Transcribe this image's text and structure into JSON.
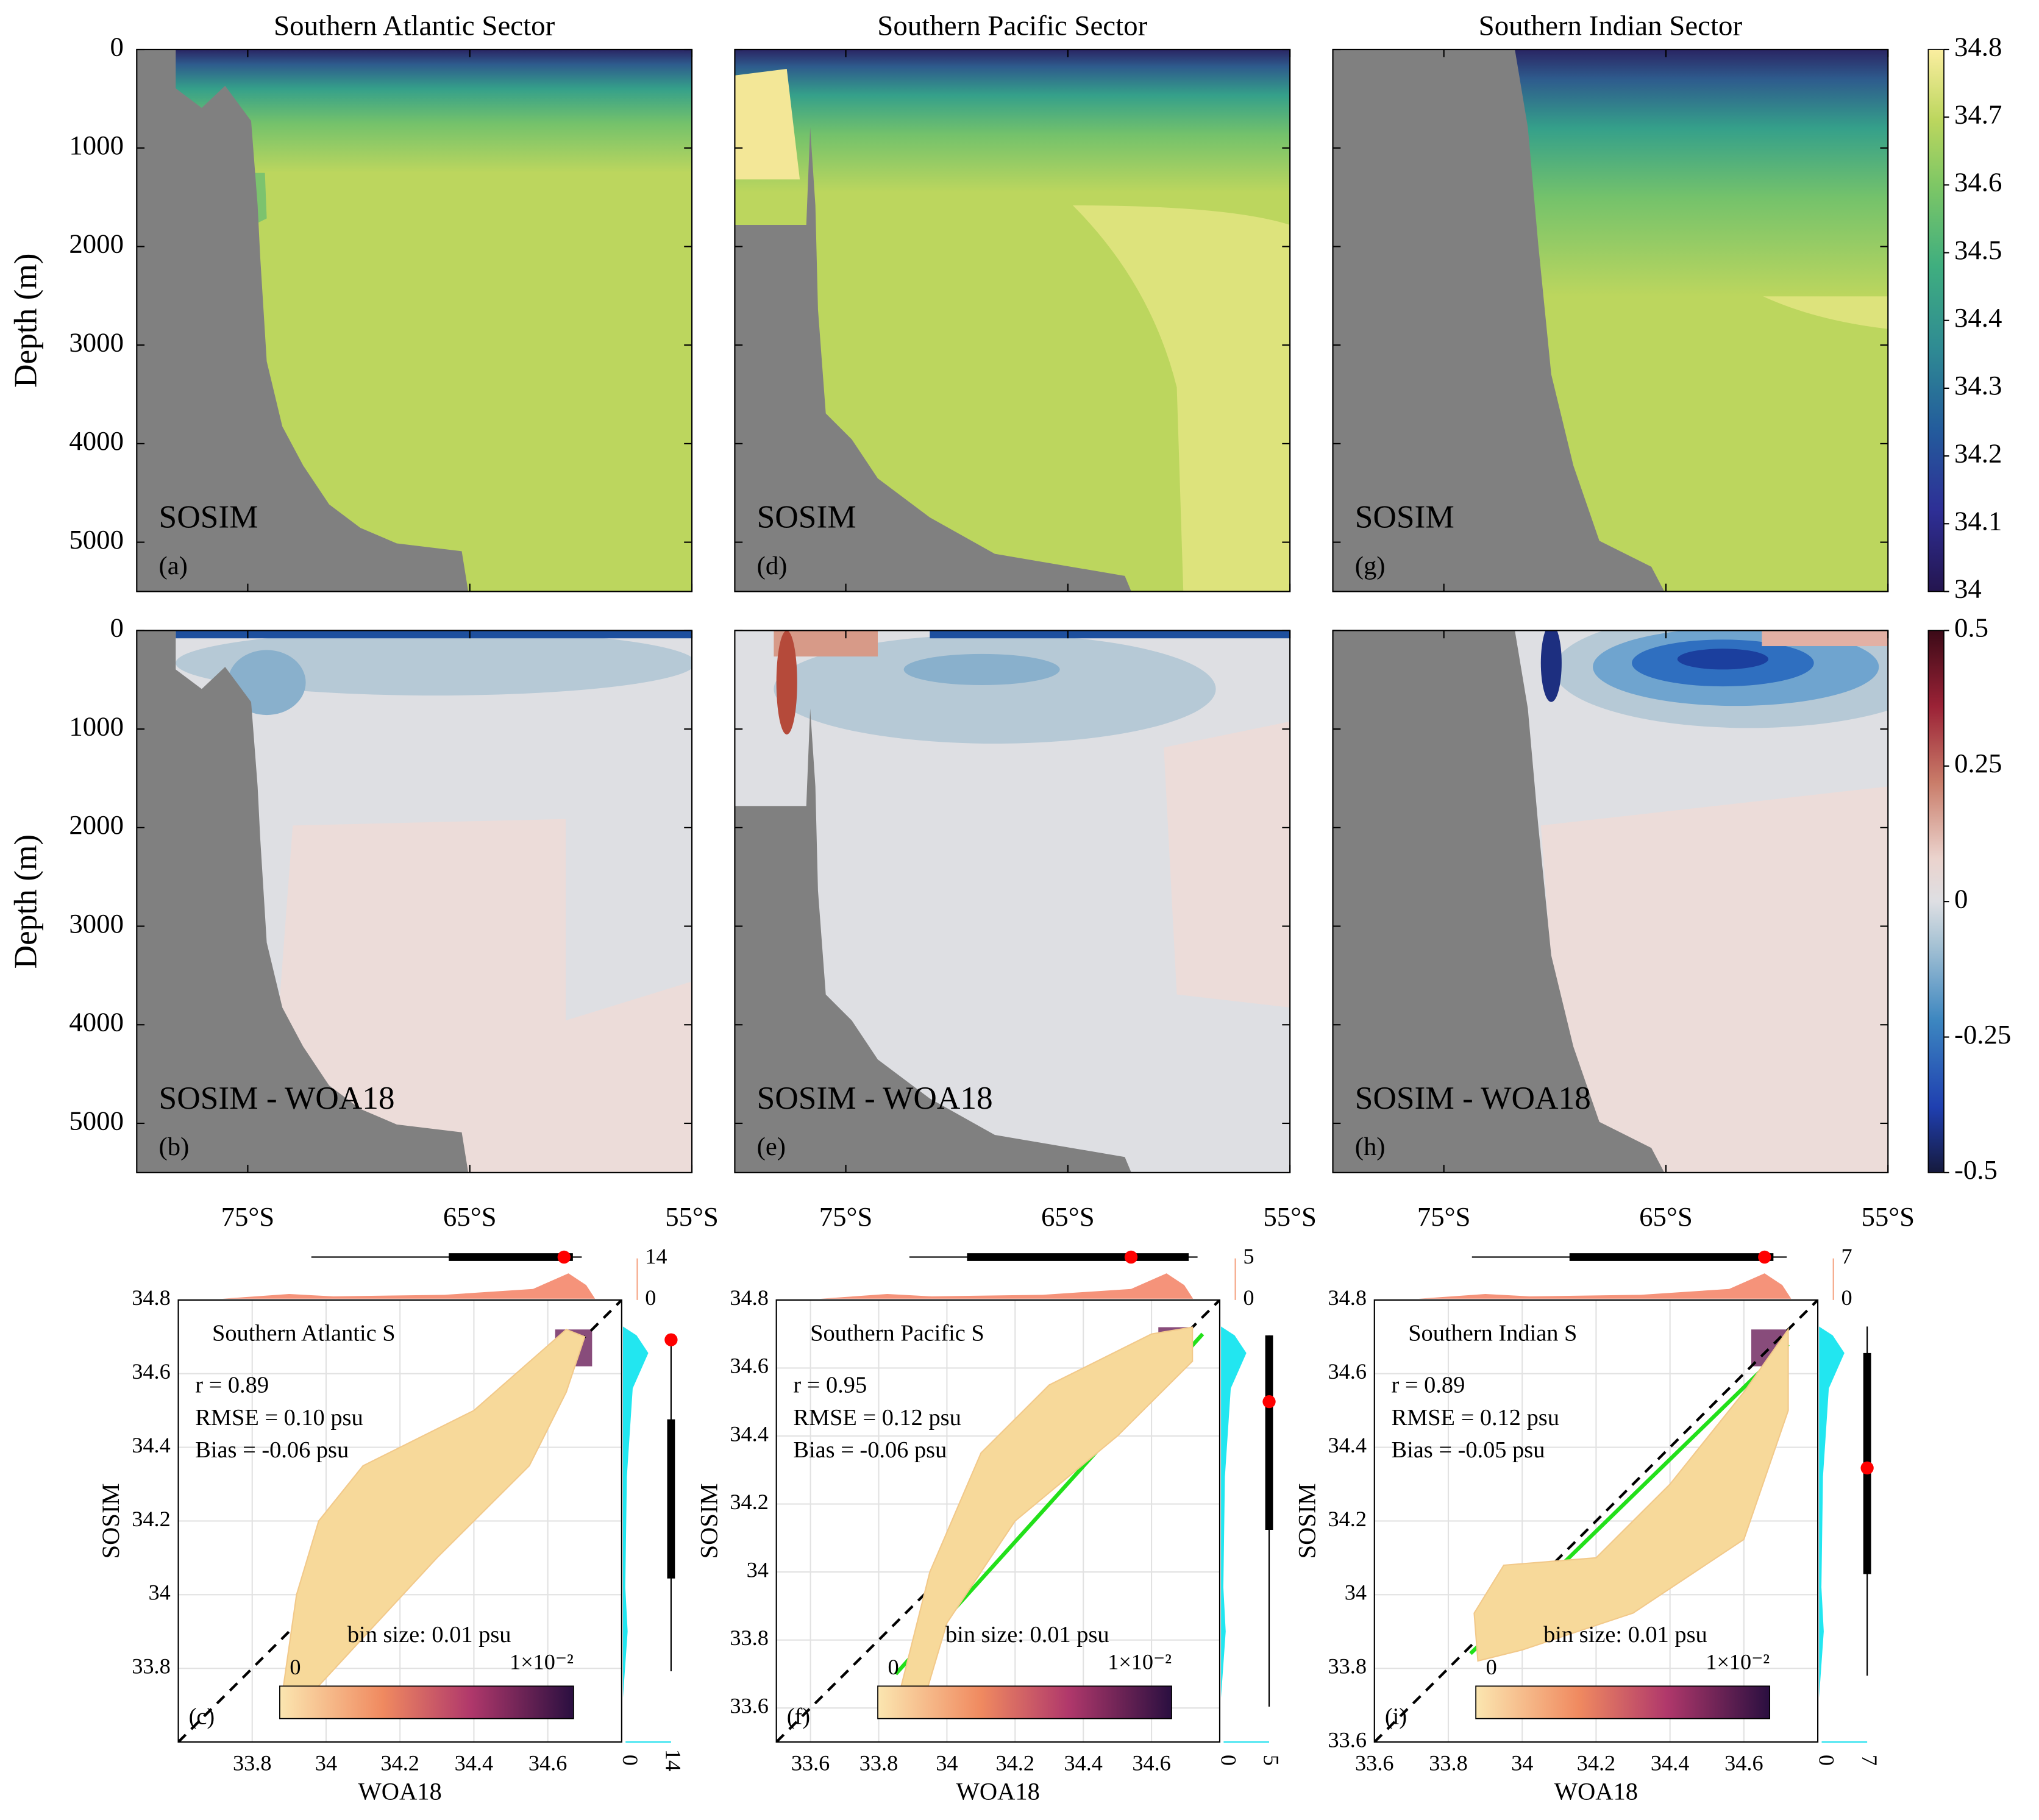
{
  "chart_data": [
    {
      "type": "contour",
      "title": "Southern Atlantic Sector",
      "label": "SOSIM",
      "panel": "(a)",
      "ylabel": "Depth (m)",
      "xlim": [
        -80,
        -55
      ],
      "xticks": [
        {
          "value": -75,
          "label": "75°S"
        },
        {
          "value": -65,
          "label": "65°S"
        },
        {
          "value": -55,
          "label": "55°S"
        }
      ],
      "ylim": [
        0,
        5500
      ],
      "yticks": [
        0,
        1000,
        2000,
        3000,
        4000,
        5000
      ],
      "xtick_labels": false,
      "ytick_labels": true
    },
    {
      "type": "contour",
      "title": "Southern Pacific Sector",
      "label": "SOSIM",
      "panel": "(d)",
      "xlim": [
        -80,
        -55
      ],
      "xticks": [
        {
          "value": -75,
          "label": "75°S"
        },
        {
          "value": -65,
          "label": "65°S"
        },
        {
          "value": -55,
          "label": "55°S"
        }
      ],
      "ylim": [
        0,
        5500
      ],
      "yticks": [
        0,
        1000,
        2000,
        3000,
        4000,
        5000
      ],
      "xtick_labels": false,
      "ytick_labels": false
    },
    {
      "type": "contour",
      "title": "Southern Indian Sector",
      "label": "SOSIM",
      "panel": "(g)",
      "xlim": [
        -80,
        -55
      ],
      "xticks": [
        {
          "value": -75,
          "label": "75°S"
        },
        {
          "value": -65,
          "label": "65°S"
        },
        {
          "value": -55,
          "label": "55°S"
        }
      ],
      "ylim": [
        0,
        5500
      ],
      "yticks": [
        0,
        1000,
        2000,
        3000,
        4000,
        5000
      ],
      "xtick_labels": false,
      "ytick_labels": false
    },
    {
      "type": "contour",
      "label": "SOSIM - WOA18",
      "panel": "(b)",
      "ylabel": "Depth (m)",
      "xlim": [
        -80,
        -55
      ],
      "xticks": [
        {
          "value": -75,
          "label": "75°S"
        },
        {
          "value": -65,
          "label": "65°S"
        },
        {
          "value": -55,
          "label": "55°S"
        }
      ],
      "ylim": [
        0,
        5500
      ],
      "yticks": [
        0,
        1000,
        2000,
        3000,
        4000,
        5000
      ],
      "xtick_labels": true,
      "ytick_labels": true
    },
    {
      "type": "contour",
      "label": "SOSIM - WOA18",
      "panel": "(e)",
      "xlim": [
        -80,
        -55
      ],
      "xticks": [
        {
          "value": -75,
          "label": "75°S"
        },
        {
          "value": -65,
          "label": "65°S"
        },
        {
          "value": -55,
          "label": "55°S"
        }
      ],
      "ylim": [
        0,
        5500
      ],
      "yticks": [
        0,
        1000,
        2000,
        3000,
        4000,
        5000
      ],
      "xtick_labels": true,
      "ytick_labels": false
    },
    {
      "type": "contour",
      "label": "SOSIM - WOA18",
      "panel": "(h)",
      "xlim": [
        -80,
        -55
      ],
      "xticks": [
        {
          "value": -75,
          "label": "75°S"
        },
        {
          "value": -65,
          "label": "65°S"
        },
        {
          "value": -55,
          "label": "55°S"
        }
      ],
      "ylim": [
        0,
        5500
      ],
      "yticks": [
        0,
        1000,
        2000,
        3000,
        4000,
        5000
      ],
      "xtick_labels": true,
      "ytick_labels": false
    },
    {
      "type": "heatmap",
      "title": "Southern Atlantic S",
      "stats": [
        "r = 0.89",
        "RMSE = 0.10 psu",
        "Bias = -0.06 psu"
      ],
      "note": "bin size: 0.01 psu",
      "panel": "(c)",
      "xlabel": "WOA18",
      "ylabel": "SOSIM",
      "xlim": [
        33.6,
        34.8
      ],
      "ylim": [
        33.6,
        34.8
      ],
      "xticks": [
        33.8,
        34,
        34.2,
        34.4,
        34.6
      ],
      "yticks": [
        33.8,
        34,
        34.2,
        34.4,
        34.6,
        34.8
      ],
      "colorbar_labels": [
        "0",
        "1×10⁻²"
      ],
      "top_ticks": [
        14,
        0
      ],
      "right_ticks": [
        0,
        14
      ]
    },
    {
      "type": "heatmap",
      "title": "Southern Pacific S",
      "stats": [
        "r = 0.95",
        "RMSE = 0.12 psu",
        "Bias = -0.06 psu"
      ],
      "note": "bin size: 0.01 psu",
      "panel": "(f)",
      "xlabel": "WOA18",
      "ylabel": "SOSIM",
      "xlim": [
        33.5,
        34.8
      ],
      "ylim": [
        33.5,
        34.8
      ],
      "xticks": [
        33.6,
        33.8,
        34,
        34.2,
        34.4,
        34.6
      ],
      "yticks": [
        33.6,
        33.8,
        34,
        34.2,
        34.4,
        34.6,
        34.8
      ],
      "colorbar_labels": [
        "0",
        "1×10⁻²"
      ],
      "top_ticks": [
        5,
        0
      ],
      "right_ticks": [
        0,
        5
      ]
    },
    {
      "type": "heatmap",
      "title": "Southern Indian S",
      "stats": [
        "r = 0.89",
        "RMSE = 0.12 psu",
        "Bias = -0.05 psu"
      ],
      "note": "bin size: 0.01 psu",
      "panel": "(i)",
      "xlabel": "WOA18",
      "ylabel": "SOSIM",
      "xlim": [
        33.6,
        34.8
      ],
      "ylim": [
        33.6,
        34.8
      ],
      "xticks": [
        33.6,
        33.8,
        34,
        34.2,
        34.4,
        34.6
      ],
      "yticks": [
        33.6,
        33.8,
        34,
        34.2,
        34.4,
        34.6,
        34.8
      ],
      "colorbar_labels": [
        "0",
        "1×10⁻²"
      ],
      "top_ticks": [
        7,
        0
      ],
      "right_ticks": [
        0,
        7
      ]
    },
    {
      "type": "colorbar",
      "ylim": [
        34,
        34.8
      ],
      "yticks": [
        34,
        34.1,
        34.2,
        34.3,
        34.4,
        34.5,
        34.6,
        34.7,
        34.8
      ]
    },
    {
      "type": "colorbar",
      "ylim": [
        -0.5,
        0.5
      ],
      "yticks": [
        -0.5,
        -0.25,
        0,
        0.25,
        0.5
      ]
    }
  ]
}
